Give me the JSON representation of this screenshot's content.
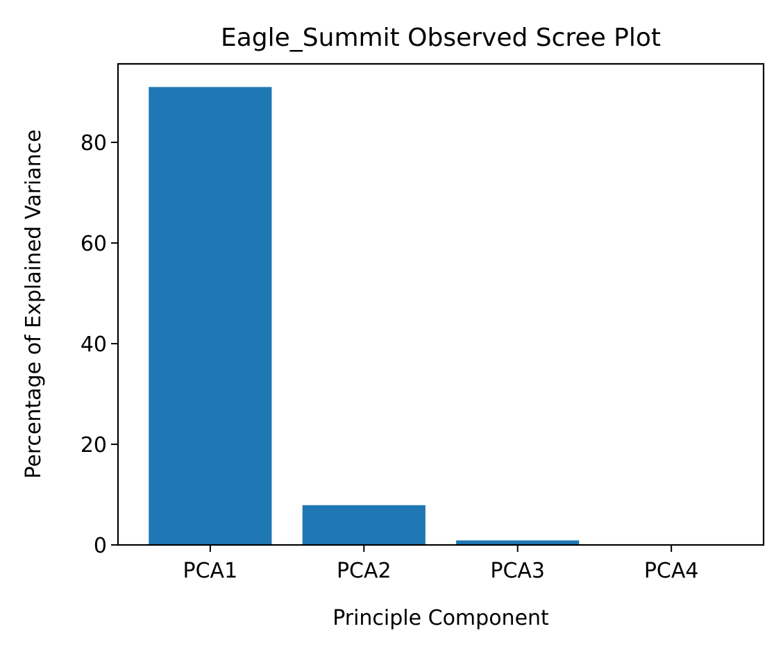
{
  "chart_data": {
    "type": "bar",
    "title": "Eagle_Summit Observed Scree Plot",
    "xlabel": "Principle Component",
    "ylabel": "Percentage of Explained Variance",
    "categories": [
      "PCA1",
      "PCA2",
      "PCA3",
      "PCA4"
    ],
    "values": [
      91.0,
      7.9,
      0.9,
      0.1
    ],
    "ylim": [
      0,
      95.6
    ],
    "yticks": [
      0,
      20,
      40,
      60,
      80
    ],
    "grid": false,
    "bar_color": "#1f77b4"
  }
}
